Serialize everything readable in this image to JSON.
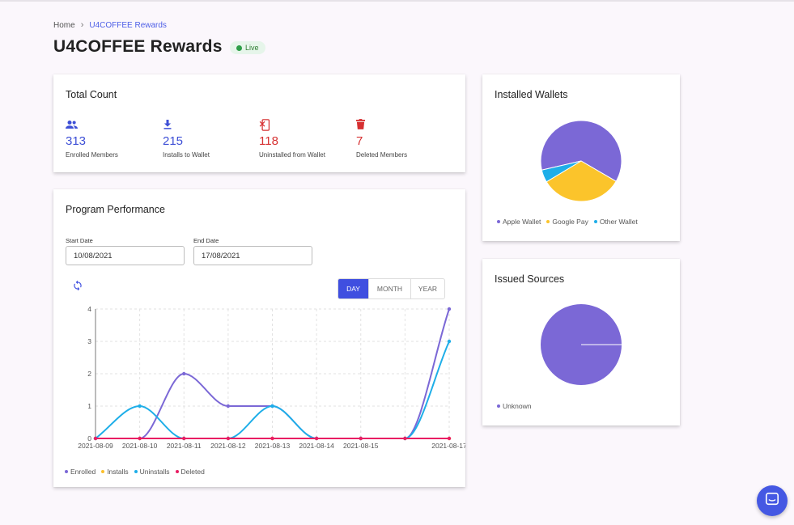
{
  "breadcrumb": {
    "home": "Home",
    "separator": "›",
    "current": "U4COFFEE Rewards"
  },
  "page": {
    "title": "U4COFFEE Rewards",
    "status_badge": "Live",
    "status_color": "#2e9e48"
  },
  "total_count": {
    "title": "Total Count",
    "stats": [
      {
        "icon": "group-icon",
        "value": "313",
        "label": "Enrolled Members",
        "color": "#3d4fd6"
      },
      {
        "icon": "download-icon",
        "value": "215",
        "label": "Installs to Wallet",
        "color": "#3d4fd6"
      },
      {
        "icon": "phonelink-erase-icon",
        "value": "118",
        "label": "Uninstalled from Wallet",
        "color": "#d63031"
      },
      {
        "icon": "trash-icon",
        "value": "7",
        "label": "Deleted Members",
        "color": "#d63031"
      }
    ]
  },
  "performance": {
    "title": "Program Performance",
    "start_label": "Start Date",
    "start_value": "10/08/2021",
    "end_label": "End Date",
    "end_value": "17/08/2021",
    "toggle": [
      "DAY",
      "MONTH",
      "YEAR"
    ],
    "active_toggle": "DAY",
    "accent": "#3f4fe0"
  },
  "wallets": {
    "title": "Installed Wallets",
    "legend": [
      "Apple Wallet",
      "Google Pay",
      "Other Wallet"
    ]
  },
  "sources": {
    "title": "Issued Sources",
    "legend": [
      "Unknown"
    ]
  },
  "chart_data": [
    {
      "type": "line",
      "x": [
        "2021-08-09",
        "2021-08-10",
        "2021-08-11",
        "2021-08-12",
        "2021-08-13",
        "2021-08-14",
        "2021-08-15",
        "2021-08-16",
        "2021-08-17"
      ],
      "x_tick_labels": [
        "2021-08-09",
        "2021-08-10",
        "2021-08-11",
        "2021-08-12",
        "2021-08-13",
        "2021-08-14",
        "2021-08-15",
        "",
        "2021-08-17"
      ],
      "ylim": [
        0,
        4
      ],
      "y_ticks": [
        0,
        1,
        2,
        3,
        4
      ],
      "grid": true,
      "legend_position": "bottom-left",
      "series": [
        {
          "name": "Enrolled",
          "color": "#7b68d6",
          "values": [
            0,
            0,
            2,
            1,
            1,
            0,
            0,
            0,
            4
          ]
        },
        {
          "name": "Installs",
          "color": "#fbc02d",
          "values": [
            0,
            0,
            0,
            0,
            0,
            0,
            0,
            0,
            0
          ]
        },
        {
          "name": "Uninstalls",
          "color": "#1eaee8",
          "values": [
            0,
            1,
            0,
            0,
            1,
            0,
            0,
            0,
            3
          ]
        },
        {
          "name": "Deleted",
          "color": "#e91e63",
          "values": [
            0,
            0,
            0,
            0,
            0,
            0,
            0,
            0,
            0
          ]
        }
      ]
    },
    {
      "type": "pie",
      "categories": [
        "Apple Wallet",
        "Google Pay",
        "Other Wallet"
      ],
      "values": [
        62,
        33,
        5
      ],
      "colors": [
        "#7b68d6",
        "#fbc42b",
        "#1eaee8"
      ]
    },
    {
      "type": "pie",
      "categories": [
        "Unknown"
      ],
      "values": [
        100
      ],
      "colors": [
        "#7b68d6"
      ]
    }
  ]
}
